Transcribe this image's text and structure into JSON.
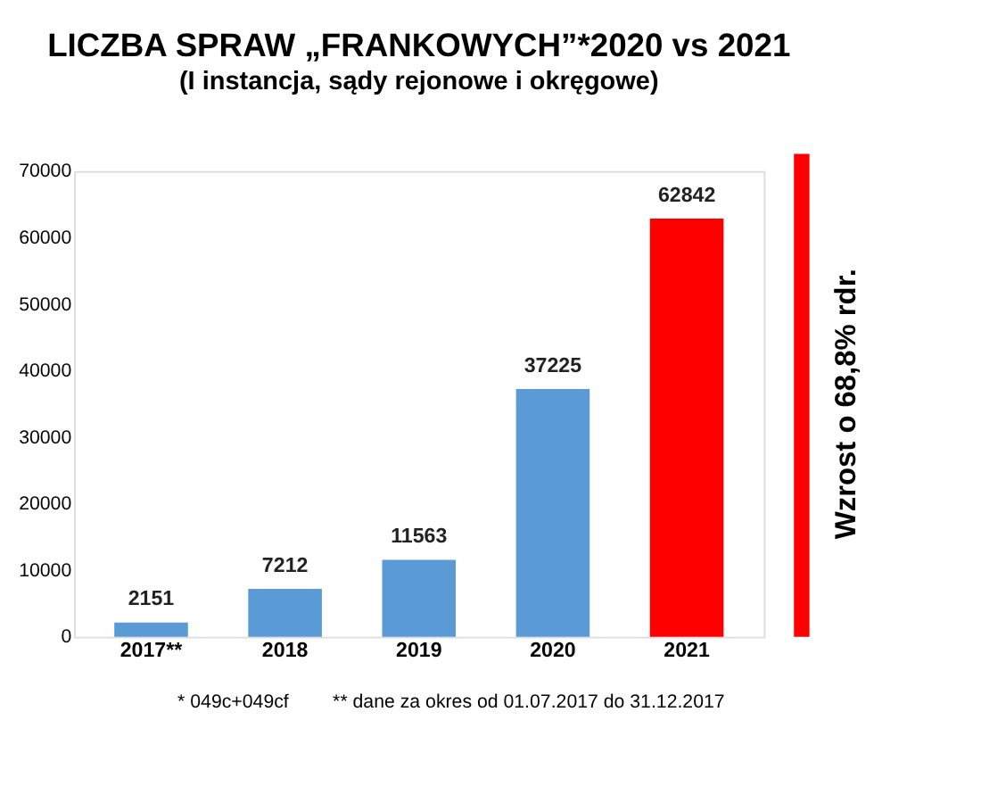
{
  "chart_data": {
    "type": "bar",
    "title": "LICZBA SPRAW „FRANKOWYCH”*2020 vs 2021",
    "subtitle": "(I instancja, sądy rejonowe i okręgowe)",
    "categories": [
      "2017**",
      "2018",
      "2019",
      "2020",
      "2021"
    ],
    "values": [
      2151,
      7212,
      11563,
      37225,
      62842
    ],
    "colors": [
      "#5b9bd5",
      "#5b9bd5",
      "#5b9bd5",
      "#5b9bd5",
      "#ff0000"
    ],
    "ylim": [
      0,
      70000
    ],
    "yticks": [
      0,
      10000,
      20000,
      30000,
      40000,
      50000,
      60000,
      70000
    ],
    "data_labels": true,
    "grid": false,
    "annotations": [
      "* 049c+049cf",
      "** dane za okres od 01.07.2017 do 31.12.2017",
      "Wzrost o 68,8% rdr."
    ]
  }
}
